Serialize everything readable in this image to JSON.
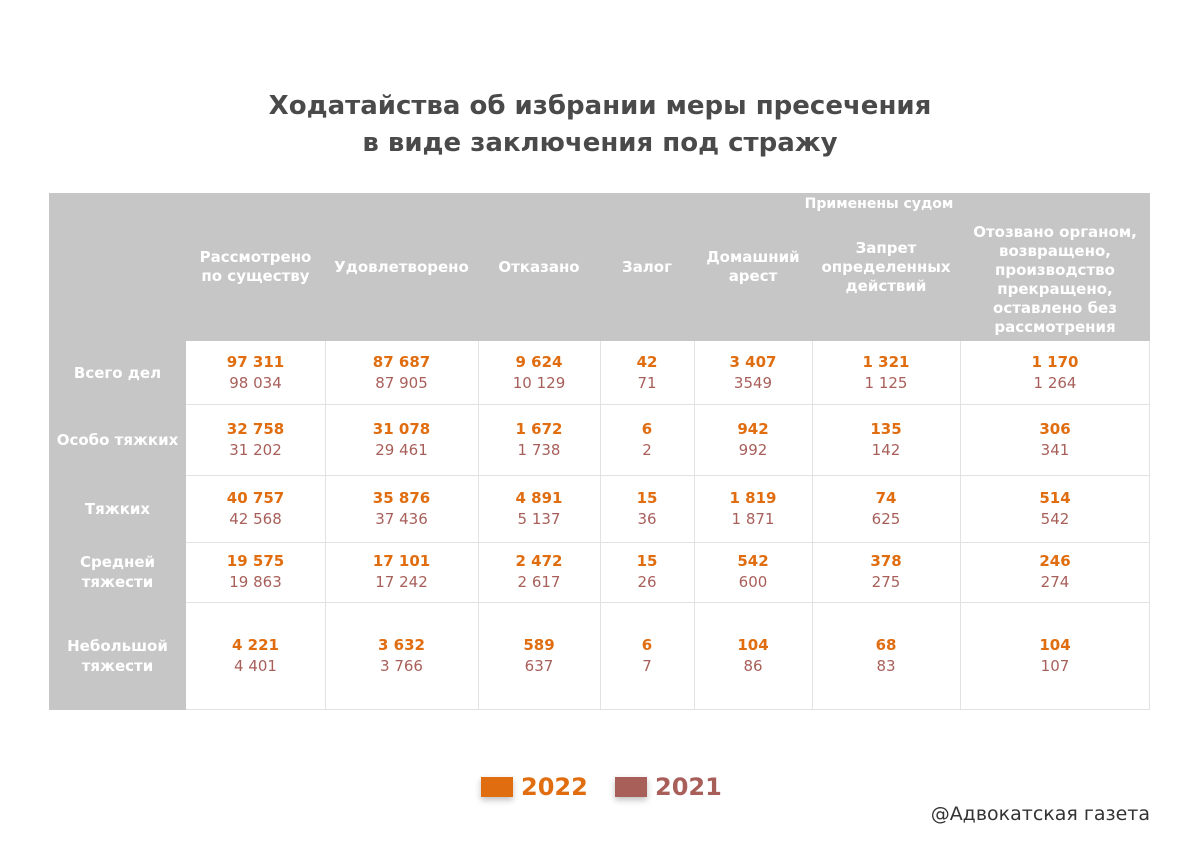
{
  "title_line1": "Ходатайства об избрании меры пресечения",
  "title_line2": "в виде заключения под стражу",
  "group_label": "Применены судом",
  "credit": "@Адвокатская газета",
  "colors": {
    "y2022": "#e06d10",
    "y2021": "#a85f5a",
    "header_bg": "#c6c6c6"
  },
  "chart_data": {
    "type": "table",
    "title": "Ходатайства об избрании меры пресечения в виде заключения под стражу",
    "columns": [
      "Рассмотрено\nпо существу",
      "Удовлетворено",
      "Отказано",
      "Залог",
      "Домашний\nарест",
      "Запрет\nопределенных\nдействий",
      "Отозвано органом,\nвозвращено,\nпроизводство\nпрекращено,\nоставлено без\nрассмотрения"
    ],
    "rows": [
      "Всего дел",
      "Особо тяжких",
      "Тяжких",
      "Средней\nтяжести",
      "Небольшой\nтяжести"
    ],
    "series": [
      {
        "name": "2022",
        "values": [
          [
            "97 311",
            "87 687",
            "9 624",
            "42",
            "3 407",
            "1 321",
            "1 170"
          ],
          [
            "32 758",
            "31 078",
            "1 672",
            "6",
            "942",
            "135",
            "306"
          ],
          [
            "40 757",
            "35 876",
            "4 891",
            "15",
            "1 819",
            "74",
            "514"
          ],
          [
            "19 575",
            "17 101",
            "2 472",
            "15",
            "542",
            "378",
            "246"
          ],
          [
            "4 221",
            "3 632",
            "589",
            "6",
            "104",
            "68",
            "104"
          ]
        ]
      },
      {
        "name": "2021",
        "values": [
          [
            "98 034",
            "87 905",
            "10 129",
            "71",
            "3549",
            "1 125",
            "1 264"
          ],
          [
            "31 202",
            "29 461",
            "1 738",
            "2",
            "992",
            "142",
            "341"
          ],
          [
            "42 568",
            "37 436",
            "5 137",
            "36",
            "1 871",
            "625",
            "542"
          ],
          [
            "19 863",
            "17 242",
            "2 617",
            "26",
            "600",
            "275",
            "274"
          ],
          [
            "4 401",
            "3 766",
            "637",
            "7",
            "86",
            "83",
            "107"
          ]
        ]
      }
    ],
    "legend": {
      "position": "bottom-center",
      "entries": [
        "2022",
        "2021"
      ]
    }
  }
}
